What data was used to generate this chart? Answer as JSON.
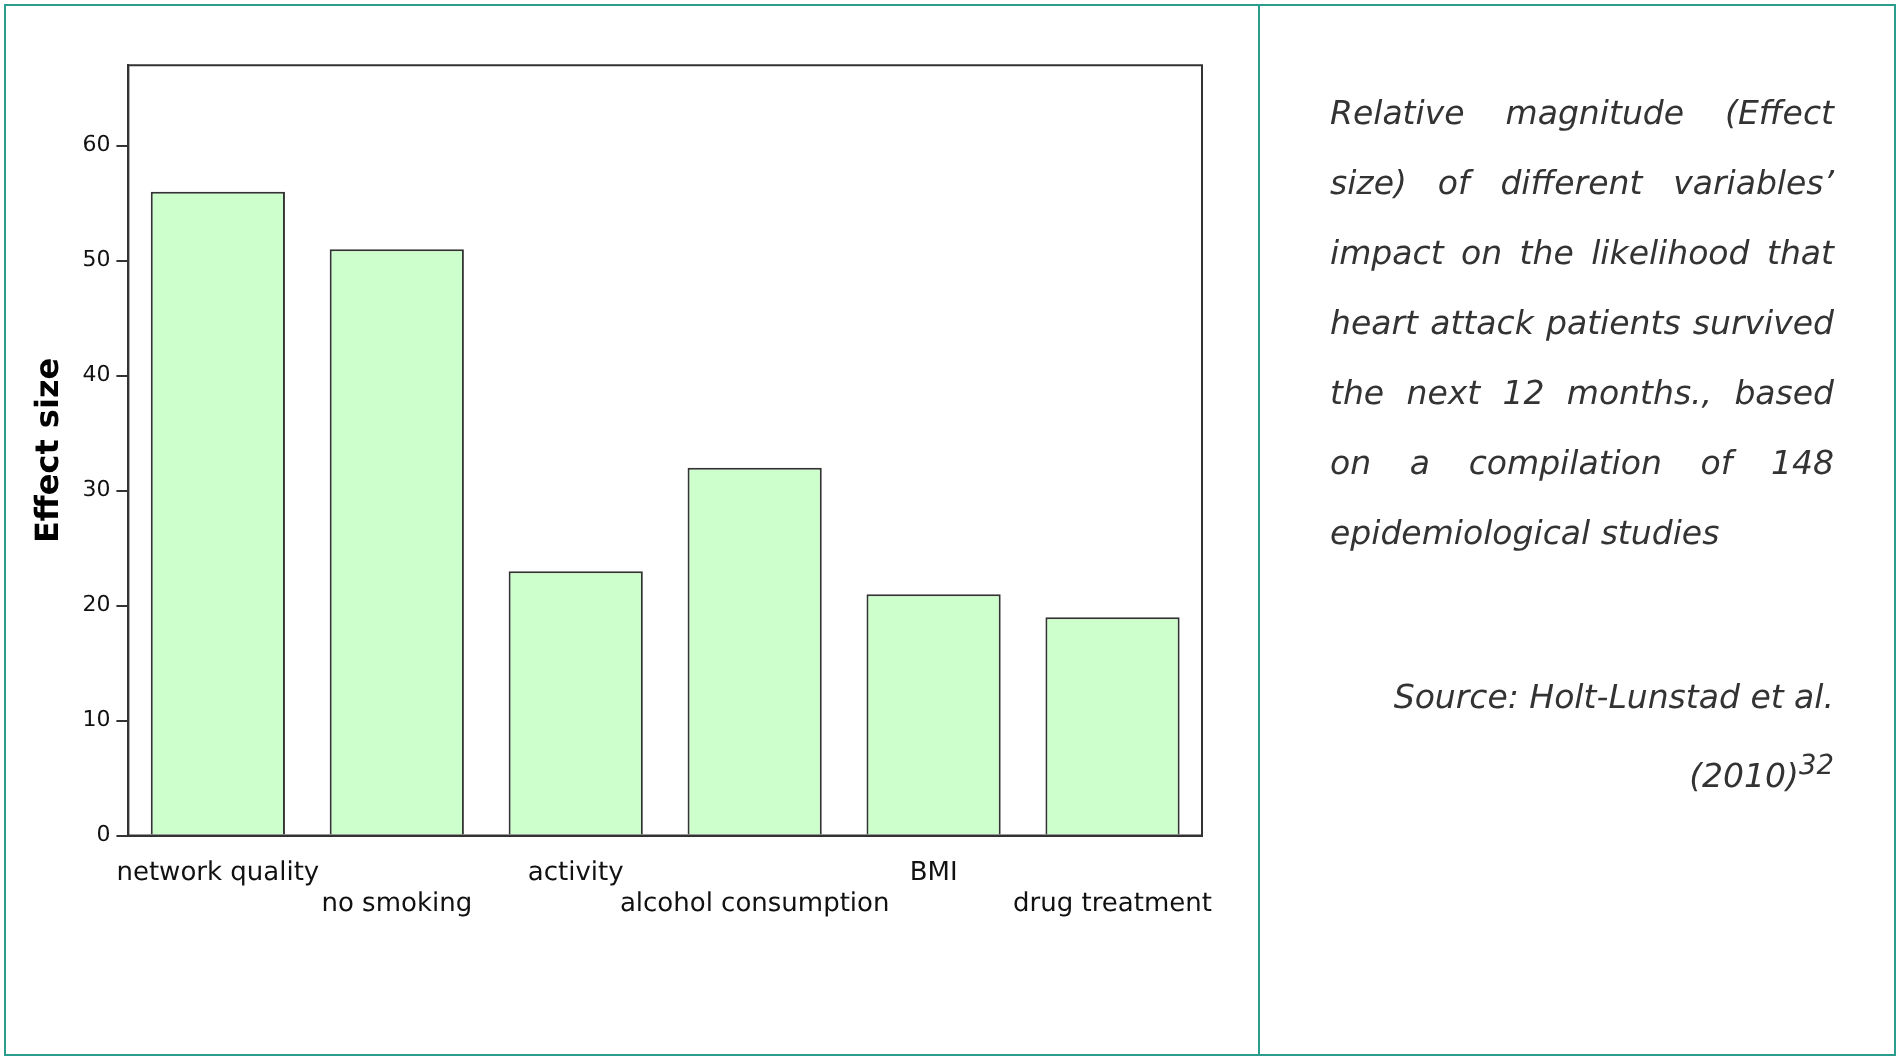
{
  "chart_data": {
    "type": "bar",
    "ylabel": "Effect size",
    "categories": [
      "network quality",
      "no smoking",
      "activity",
      "alcohol consumption",
      "BMI",
      "drug treatment"
    ],
    "values": [
      56,
      51,
      23,
      32,
      21,
      19
    ],
    "color": "#ccffcc",
    "ylim": [
      0,
      67
    ],
    "yticks": [
      0,
      10,
      20,
      30,
      40,
      50,
      60
    ],
    "grid": false,
    "legend": false,
    "annotations": [
      "Relative magnitude (Effect size) of different variables’ impact on the likelihood that heart attack patients survived the next 12 months., based on a compilation of 148 epidemiological studies",
      "Source: Holt-Lunstad et al. (2010)$^{32}$"
    ]
  }
}
